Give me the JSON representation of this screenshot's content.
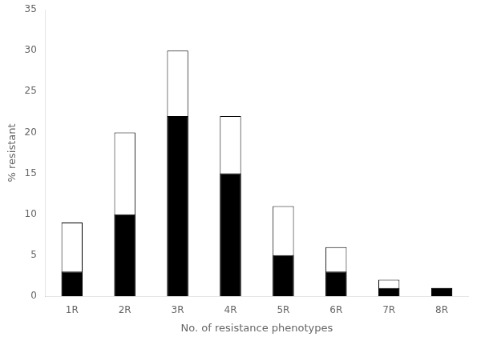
{
  "chart_data": {
    "type": "bar",
    "xlabel": "No. of resistance phenotypes",
    "ylabel": "% resistant",
    "categories": [
      "1R",
      "2R",
      "3R",
      "4R",
      "5R",
      "6R",
      "7R",
      "8R"
    ],
    "series": [
      {
        "color": "#ffffff",
        "values": [
          9,
          20,
          30,
          22,
          11,
          6,
          2,
          1
        ]
      },
      {
        "color": "#000000",
        "values": [
          3,
          10,
          22,
          15,
          5,
          3,
          1,
          1
        ]
      }
    ],
    "ylim": [
      0,
      35
    ],
    "yticks": [
      0,
      5,
      10,
      15,
      20,
      25,
      30,
      35
    ],
    "grid": false
  }
}
